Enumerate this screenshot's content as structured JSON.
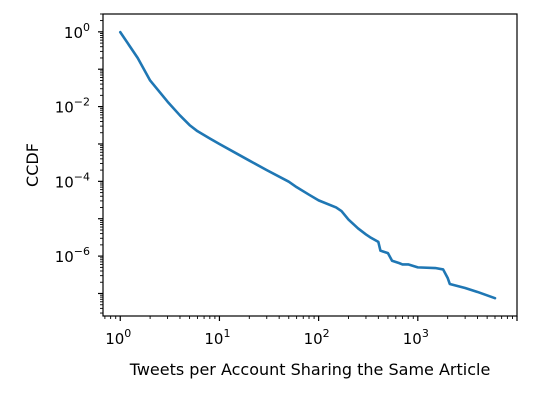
{
  "chart_data": {
    "type": "line",
    "title": "",
    "xlabel": "Tweets per Account Sharing the Same Article",
    "ylabel": "CCDF",
    "xscale": "log",
    "yscale": "log",
    "xlim": [
      0.67,
      10000
    ],
    "ylim": [
      2.5e-08,
      3.0
    ],
    "grid": false,
    "legend": "none",
    "color": "#1f77b4",
    "x_ticks": [
      {
        "value": 1,
        "base": "10",
        "exp": "0"
      },
      {
        "value": 10,
        "base": "10",
        "exp": "1"
      },
      {
        "value": 100,
        "base": "10",
        "exp": "2"
      },
      {
        "value": 1000,
        "base": "10",
        "exp": "3"
      }
    ],
    "y_ticks": [
      {
        "value": 1,
        "base": "10",
        "exp": "0"
      },
      {
        "value": 0.01,
        "base": "10",
        "exp": "−2"
      },
      {
        "value": 0.0001,
        "base": "10",
        "exp": "−4"
      },
      {
        "value": 1e-06,
        "base": "10",
        "exp": "−6"
      }
    ],
    "series": [
      {
        "x": [
          1,
          1.5,
          2,
          3,
          4,
          5,
          6,
          8,
          10,
          15,
          20,
          30,
          50,
          60,
          80,
          100,
          150,
          170,
          200,
          250,
          300,
          330,
          400,
          420,
          500,
          550,
          650,
          700,
          800,
          1000,
          1500,
          1800,
          2000,
          2100,
          3000,
          4000,
          6000
        ],
        "y": [
          0.98,
          0.2,
          0.05,
          0.0135,
          0.0058,
          0.0032,
          0.0022,
          0.0014,
          0.001,
          0.00055,
          0.00036,
          0.0002,
          9.8e-05,
          7e-05,
          4.4e-05,
          3.1e-05,
          2e-05,
          1.6e-05,
          9.5e-06,
          5.5e-06,
          3.8e-06,
          3.2e-06,
          2.4e-06,
          1.4e-06,
          1.2e-06,
          7.5e-07,
          6.5e-07,
          6e-07,
          6e-07,
          5e-07,
          4.8e-07,
          4.4e-07,
          2.6e-07,
          1.8e-07,
          1.4e-07,
          1.1e-07,
          7.5e-08
        ]
      }
    ]
  }
}
